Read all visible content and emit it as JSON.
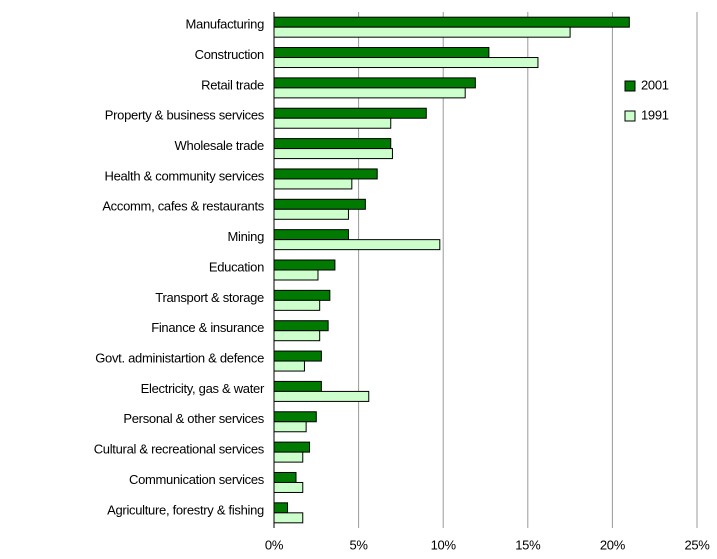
{
  "chart_data": {
    "type": "hbar",
    "categories": [
      "Manufacturing",
      "Construction",
      "Retail trade",
      "Property & business services",
      "Wholesale trade",
      "Health & community services",
      "Accomm, cafes & restaurants",
      "Mining",
      "Education",
      "Transport & storage",
      "Finance & insurance",
      "Govt. administartion & defence",
      "Electricity, gas & water",
      "Personal & other services",
      "Cultural & recreational services",
      "Communication services",
      "Agriculture, forestry & fishing"
    ],
    "series": [
      {
        "name": "2001",
        "color": "#007a00",
        "values": [
          21,
          12.7,
          11.9,
          9.0,
          6.9,
          6.1,
          5.4,
          4.4,
          3.6,
          3.3,
          3.2,
          2.8,
          2.8,
          2.5,
          2.1,
          1.3,
          0.8
        ]
      },
      {
        "name": "1991",
        "color": "#ccffcc",
        "values": [
          17.5,
          15.6,
          11.3,
          6.9,
          7.0,
          4.6,
          4.4,
          9.8,
          2.6,
          2.7,
          2.7,
          1.8,
          5.6,
          1.9,
          1.7,
          1.7,
          1.7
        ]
      }
    ],
    "xlim": [
      0,
      25
    ],
    "xticks": [
      {
        "value": 0,
        "label": "0%"
      },
      {
        "value": 5,
        "label": "5%"
      },
      {
        "value": 10,
        "label": "10%"
      },
      {
        "value": 15,
        "label": "15%"
      },
      {
        "value": 20,
        "label": "20%"
      },
      {
        "value": 25,
        "label": "25%"
      }
    ],
    "grid": true,
    "legend": "right"
  }
}
